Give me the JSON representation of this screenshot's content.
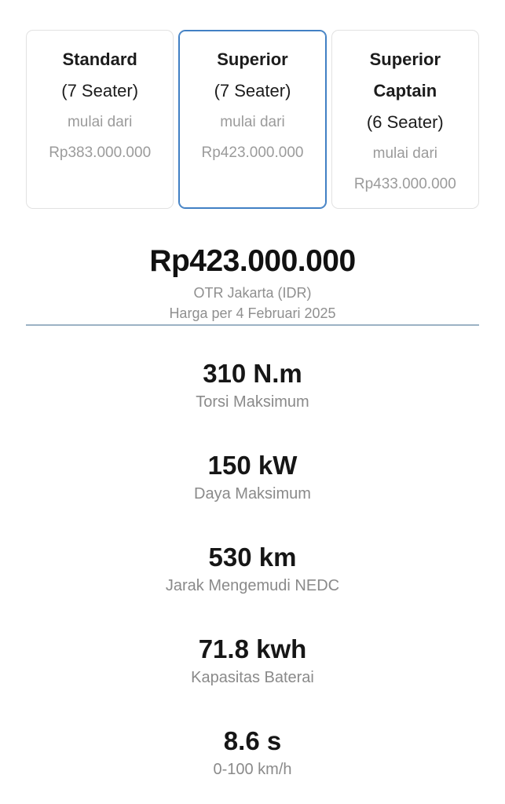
{
  "variants": {
    "items": [
      {
        "name": "Standard",
        "seater": "(7 Seater)",
        "prefix": "mulai dari",
        "price": "Rp383.000.000",
        "selected": false
      },
      {
        "name": "Superior",
        "seater": "(7 Seater)",
        "prefix": "mulai dari",
        "price": "Rp423.000.000",
        "selected": true
      },
      {
        "name": "Superior Captain",
        "seater": "(6 Seater)",
        "prefix": "mulai dari",
        "price": "Rp433.000.000",
        "selected": false
      }
    ]
  },
  "price_summary": {
    "price": "Rp423.000.000",
    "region": "OTR Jakarta (IDR)",
    "date_note": "Harga per 4 Februari 2025"
  },
  "specs": [
    {
      "value": "310 N.m",
      "label": "Torsi Maksimum"
    },
    {
      "value": "150 kW",
      "label": "Daya Maksimum"
    },
    {
      "value": "530 km",
      "label": "Jarak Mengemudi NEDC"
    },
    {
      "value": "71.8 kwh",
      "label": "Kapasitas Baterai"
    },
    {
      "value": "8.6 s",
      "label": "0-100 km/h"
    }
  ],
  "colors": {
    "selected_border": "#4180c4",
    "card_border": "#e2e2e2",
    "muted_text": "#9b9b9b",
    "divider": "#9cb2c4"
  }
}
